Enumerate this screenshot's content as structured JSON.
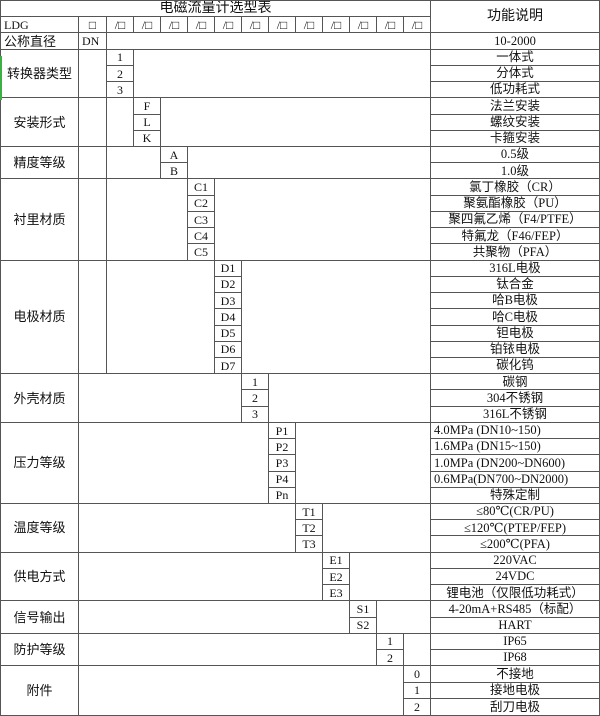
{
  "title": "电磁流量计选型表",
  "function_header": "功能说明",
  "model_code_row": {
    "prefix": "LDG",
    "base_box": "□",
    "slot": "/□",
    "slot_count": 12
  },
  "groups": [
    {
      "label": "公称直径",
      "items": [
        {
          "code": "DN",
          "desc": "10-2000"
        }
      ]
    },
    {
      "label": "转换器类型",
      "items": [
        {
          "code": "1",
          "desc": "一体式"
        },
        {
          "code": "2",
          "desc": "分体式"
        },
        {
          "code": "3",
          "desc": "低功耗式"
        }
      ]
    },
    {
      "label": "安装形式",
      "items": [
        {
          "code": "F",
          "desc": "法兰安装"
        },
        {
          "code": "L",
          "desc": "螺纹安装"
        },
        {
          "code": "K",
          "desc": "卡箍安装"
        }
      ]
    },
    {
      "label": "精度等级",
      "items": [
        {
          "code": "A",
          "desc": "0.5级"
        },
        {
          "code": "B",
          "desc": "1.0级"
        }
      ]
    },
    {
      "label": "衬里材质",
      "items": [
        {
          "code": "C1",
          "desc": "氯丁橡胶（CR）"
        },
        {
          "code": "C2",
          "desc": "聚氨酯橡胶（PU）"
        },
        {
          "code": "C3",
          "desc": "聚四氟乙烯（F4/PTFE）"
        },
        {
          "code": "C4",
          "desc": "特氟龙（F46/FEP）"
        },
        {
          "code": "C5",
          "desc": "共聚物（PFA）"
        }
      ]
    },
    {
      "label": "电极材质",
      "items": [
        {
          "code": "D1",
          "desc": "316L电极"
        },
        {
          "code": "D2",
          "desc": "钛合金"
        },
        {
          "code": "D3",
          "desc": "哈B电极"
        },
        {
          "code": "D4",
          "desc": "哈C电极"
        },
        {
          "code": "D5",
          "desc": "钽电极"
        },
        {
          "code": "D6",
          "desc": "铂铱电极"
        },
        {
          "code": "D7",
          "desc": "碳化钨"
        }
      ]
    },
    {
      "label": "外壳材质",
      "items": [
        {
          "code": "1",
          "desc": "碳钢"
        },
        {
          "code": "2",
          "desc": "304不锈钢"
        },
        {
          "code": "3",
          "desc": "316L不锈钢"
        }
      ]
    },
    {
      "label": "压力等级",
      "items": [
        {
          "code": "P1",
          "desc": "4.0MPa (DN10~150)"
        },
        {
          "code": "P2",
          "desc": "1.6MPa (DN15~150)"
        },
        {
          "code": "P3",
          "desc": "1.0MPa (DN200~DN600)"
        },
        {
          "code": "P4",
          "desc": "0.6MPa(DN700~DN2000)"
        },
        {
          "code": "Pn",
          "desc": "特殊定制"
        }
      ]
    },
    {
      "label": "温度等级",
      "items": [
        {
          "code": "T1",
          "desc": "≤80℃(CR/PU)"
        },
        {
          "code": "T2",
          "desc": "≤120℃(PTEP/FEP)"
        },
        {
          "code": "T3",
          "desc": "≤200℃(PFA)"
        }
      ]
    },
    {
      "label": "供电方式",
      "items": [
        {
          "code": "E1",
          "desc": "220VAC"
        },
        {
          "code": "E2",
          "desc": "24VDC"
        },
        {
          "code": "E3",
          "desc": "锂电池（仅限低功耗式）"
        }
      ]
    },
    {
      "label": "信号输出",
      "items": [
        {
          "code": "S1",
          "desc": "4-20mA+RS485（标配）"
        },
        {
          "code": "S2",
          "desc": "HART"
        }
      ]
    },
    {
      "label": "防护等级",
      "items": [
        {
          "code": "1",
          "desc": "IP65"
        },
        {
          "code": "2",
          "desc": "IP68"
        }
      ]
    },
    {
      "label": "附件",
      "items": [
        {
          "code": "0",
          "desc": "不接地"
        },
        {
          "code": "1",
          "desc": "接地电极"
        },
        {
          "code": "2",
          "desc": "刮刀电极"
        }
      ]
    }
  ],
  "colors": {
    "border": "#555555",
    "text": "#111111",
    "background": "#ffffff",
    "artifact_green": "#3cb044"
  }
}
